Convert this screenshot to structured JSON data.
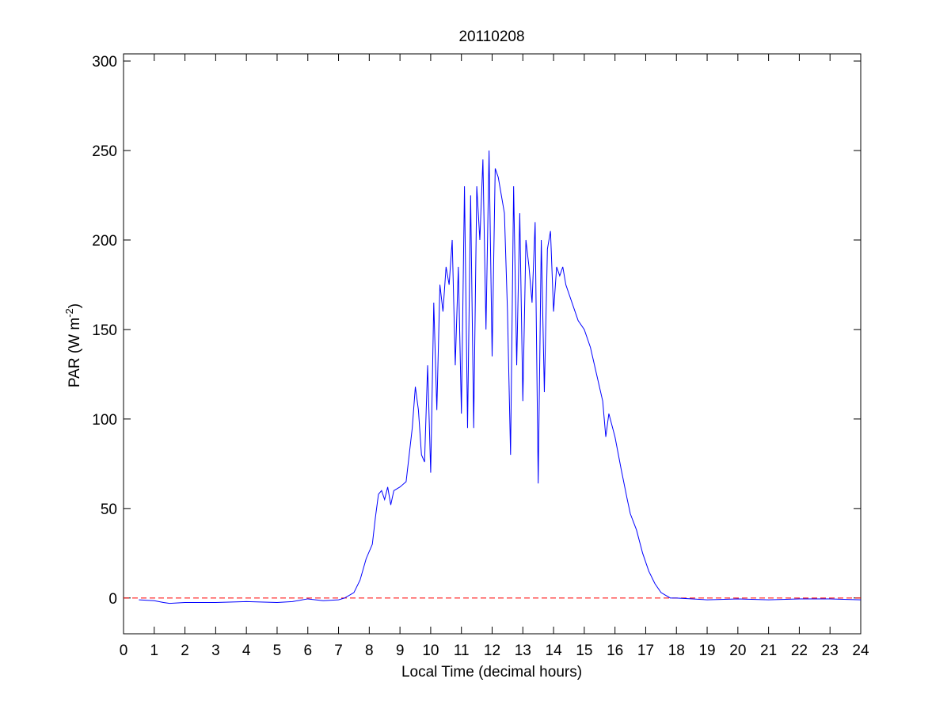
{
  "chart_data": {
    "type": "line",
    "title": "20110208",
    "x_label": "Local Time (decimal hours)",
    "y_label": {
      "text": "PAR (W m",
      "superscript": "-2",
      "suffix": ")"
    },
    "xlim": [
      0,
      24
    ],
    "xticks": [
      0,
      1,
      2,
      3,
      4,
      5,
      6,
      7,
      8,
      9,
      10,
      11,
      12,
      13,
      14,
      15,
      16,
      17,
      18,
      19,
      20,
      21,
      22,
      23,
      24
    ],
    "ylim": [
      -20,
      304
    ],
    "yticks": [
      0,
      50,
      100,
      150,
      200,
      250,
      300
    ],
    "grid": false,
    "reference_line": {
      "value": 0,
      "color": "#ff0000"
    },
    "series": [
      {
        "color": "#0000ff",
        "x": [
          0.5,
          1,
          1.3,
          1.5,
          2,
          3,
          4,
          5,
          5.5,
          6,
          6.5,
          7,
          7.2,
          7.5,
          7.7,
          7.9,
          8.1,
          8.2,
          8.3,
          8.4,
          8.5,
          8.6,
          8.7,
          8.8,
          9.0,
          9.2,
          9.3,
          9.4,
          9.5,
          9.6,
          9.7,
          9.8,
          9.9,
          10.0,
          10.1,
          10.2,
          10.3,
          10.4,
          10.5,
          10.6,
          10.7,
          10.8,
          10.9,
          11.0,
          11.1,
          11.2,
          11.3,
          11.4,
          11.5,
          11.6,
          11.7,
          11.8,
          11.9,
          12.0,
          12.1,
          12.2,
          12.3,
          12.4,
          12.5,
          12.6,
          12.7,
          12.8,
          12.9,
          13.0,
          13.1,
          13.2,
          13.3,
          13.4,
          13.5,
          13.6,
          13.7,
          13.8,
          13.9,
          14.0,
          14.1,
          14.2,
          14.3,
          14.4,
          14.5,
          14.7,
          14.8,
          15.0,
          15.2,
          15.4,
          15.6,
          15.7,
          15.8,
          16.0,
          16.2,
          16.4,
          16.5,
          16.7,
          16.9,
          17.1,
          17.3,
          17.5,
          17.8,
          18,
          19,
          20,
          21,
          22,
          23,
          24
        ],
        "values": [
          -1,
          -1.5,
          -2.5,
          -3,
          -2.5,
          -2.5,
          -2,
          -2.5,
          -2,
          -0.5,
          -1.5,
          -1,
          0,
          3,
          10,
          22,
          30,
          45,
          58,
          60,
          55,
          62,
          52,
          60,
          62,
          65,
          80,
          95,
          118,
          105,
          80,
          76,
          130,
          70,
          165,
          105,
          175,
          160,
          185,
          175,
          200,
          130,
          185,
          103,
          230,
          95,
          225,
          95,
          230,
          200,
          245,
          150,
          250,
          135,
          240,
          235,
          225,
          215,
          160,
          80,
          230,
          130,
          215,
          110,
          200,
          185,
          165,
          210,
          64,
          200,
          115,
          195,
          205,
          160,
          185,
          180,
          185,
          175,
          170,
          160,
          155,
          150,
          140,
          125,
          110,
          90,
          103,
          90,
          72,
          55,
          47,
          38,
          25,
          15,
          8,
          3,
          0,
          0,
          -1,
          -0.5,
          -1,
          -0.5,
          -0.5,
          -1
        ]
      }
    ]
  }
}
